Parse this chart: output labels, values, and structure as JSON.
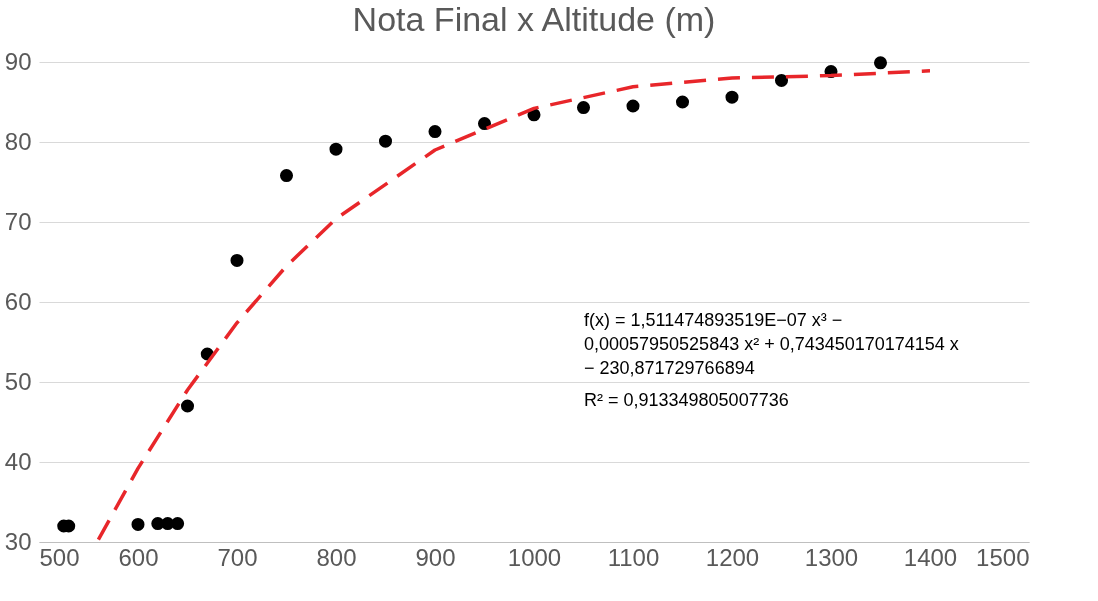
{
  "chart_data": {
    "type": "scatter",
    "title": "Nota Final x Altitude (m)",
    "xlim": [
      500,
      1500
    ],
    "xticks": [
      500,
      600,
      700,
      800,
      900,
      1000,
      1100,
      1200,
      1300,
      1400,
      1500
    ],
    "ylim": [
      30,
      90
    ],
    "yticks": [
      30,
      40,
      50,
      60,
      70,
      80,
      90
    ],
    "grid": "y",
    "marker": "circle",
    "series": [
      {
        "color": "#000000",
        "x": [
          525,
          530,
          600,
          620,
          630,
          640,
          650,
          670,
          700,
          750,
          800,
          850,
          900,
          950,
          1000,
          1050,
          1100,
          1150,
          1200,
          1250,
          1300,
          1350
        ],
        "values": [
          32.0,
          32.0,
          32.2,
          32.3,
          32.3,
          32.3,
          47.0,
          53.5,
          65.2,
          75.8,
          79.1,
          80.1,
          81.3,
          82.3,
          83.4,
          84.3,
          84.5,
          85.0,
          85.6,
          87.7,
          88.8,
          89.9
        ]
      },
      {
        "type": "line",
        "color": "#e8262a",
        "line_style": "dashed",
        "marker": "none",
        "x": [
          560,
          600,
          650,
          700,
          750,
          800,
          900,
          1000,
          1100,
          1200,
          1300,
          1400
        ],
        "values": [
          30.3,
          39.2,
          49.0,
          57.4,
          64.5,
          70.4,
          79.0,
          84.2,
          86.9,
          88.0,
          88.3,
          88.9
        ]
      }
    ],
    "annotations": [
      "f(x) = 1,511474893519E−07 x³ − 0,00057950525843 x² + 0,743450170174154 x − 230,871729766894",
      "R² = 0,913349805007736"
    ]
  }
}
